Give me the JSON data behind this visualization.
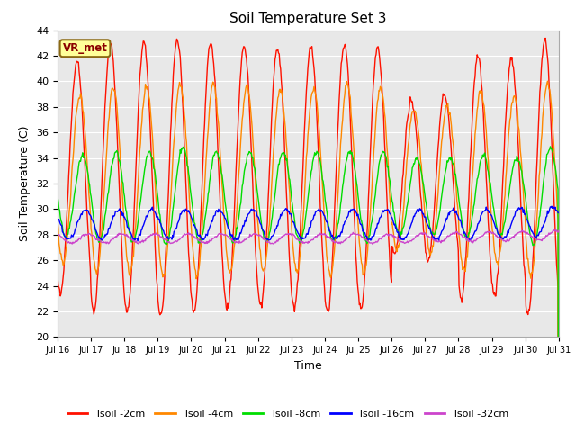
{
  "title": "Soil Temperature Set 3",
  "xlabel": "Time",
  "ylabel": "Soil Temperature (C)",
  "xlim": [
    0,
    15
  ],
  "ylim": [
    20,
    44
  ],
  "yticks": [
    20,
    22,
    24,
    26,
    28,
    30,
    32,
    34,
    36,
    38,
    40,
    42,
    44
  ],
  "xtick_labels": [
    "Jul 16",
    "Jul 17",
    "Jul 18",
    "Jul 19",
    "Jul 20",
    "Jul 21",
    "Jul 22",
    "Jul 23",
    "Jul 24",
    "Jul 25",
    "Jul 26",
    "Jul 27",
    "Jul 28",
    "Jul 29",
    "Jul 30",
    "Jul 31"
  ],
  "background_color": "#e8e8e8",
  "figure_color": "#ffffff",
  "colors": {
    "Tsoil -2cm": "#ff1100",
    "Tsoil -4cm": "#ff8800",
    "Tsoil -8cm": "#00dd00",
    "Tsoil -16cm": "#0000ff",
    "Tsoil -32cm": "#cc44cc"
  },
  "annotation_text": "VR_met",
  "annotation_facecolor": "#ffff99",
  "annotation_edgecolor": "#8B6914",
  "annotation_textcolor": "#8B0000"
}
